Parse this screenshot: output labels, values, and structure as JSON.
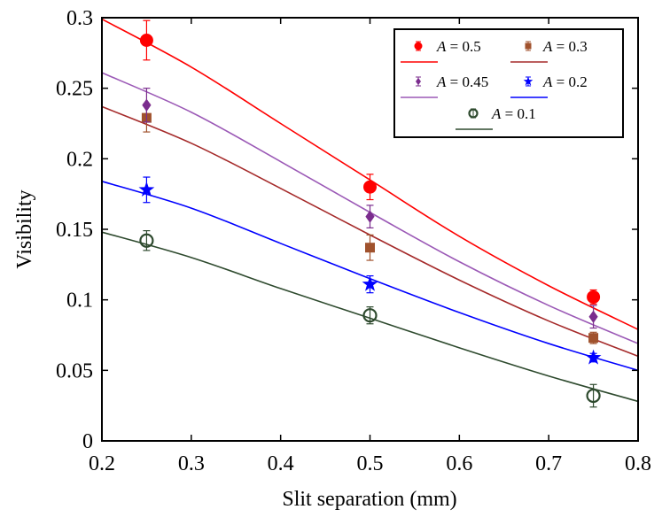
{
  "chart_data": {
    "type": "scatter",
    "title": "",
    "xlabel": "Slit separation (mm)",
    "ylabel": "Visibility",
    "xlim": [
      0.2,
      0.8
    ],
    "ylim": [
      0,
      0.3
    ],
    "xticks": [
      0.2,
      0.3,
      0.4,
      0.5,
      0.6,
      0.7,
      0.8
    ],
    "yticks": [
      0,
      0.05,
      0.1,
      0.15,
      0.2,
      0.25,
      0.3
    ],
    "xtick_labels": [
      "0.2",
      "0.3",
      "0.4",
      "0.5",
      "0.6",
      "0.7",
      "0.8"
    ],
    "ytick_labels": [
      "0",
      "0.05",
      "0.1",
      "0.15",
      "0.2",
      "0.25",
      "0.3"
    ],
    "legend_position": "top-right",
    "series": [
      {
        "name": "A = 0.5",
        "legend_var": "A",
        "legend_value": "= 0.5",
        "color": "#ff0000",
        "marker": "circle",
        "x": [
          0.25,
          0.5,
          0.75
        ],
        "y": [
          0.284,
          0.18,
          0.102
        ],
        "err": [
          0.014,
          0.009,
          0.005
        ],
        "fit_x": [
          0.2,
          0.3,
          0.4,
          0.5,
          0.6,
          0.7,
          0.8
        ],
        "fit_y": [
          0.299,
          0.265,
          0.225,
          0.185,
          0.145,
          0.11,
          0.079
        ]
      },
      {
        "name": "A = 0.3",
        "legend_var": "A",
        "legend_value": "= 0.3",
        "color": "#a0522d",
        "fit_color": "#a52a2a",
        "marker": "square",
        "x": [
          0.25,
          0.5,
          0.75
        ],
        "y": [
          0.229,
          0.137,
          0.073
        ],
        "err": [
          0.01,
          0.009,
          0.004
        ],
        "fit_x": [
          0.2,
          0.3,
          0.4,
          0.5,
          0.6,
          0.7,
          0.8
        ],
        "fit_y": [
          0.237,
          0.211,
          0.179,
          0.146,
          0.114,
          0.085,
          0.06
        ]
      },
      {
        "name": "A = 0.45",
        "legend_var": "A",
        "legend_value": "= 0.45",
        "color": "#7b2d8e",
        "fit_color": "#9b59b6",
        "marker": "diamond",
        "x": [
          0.25,
          0.5,
          0.75
        ],
        "y": [
          0.238,
          0.159,
          0.088
        ],
        "err": [
          0.012,
          0.008,
          0.008
        ],
        "fit_x": [
          0.2,
          0.3,
          0.4,
          0.5,
          0.6,
          0.7,
          0.8
        ],
        "fit_y": [
          0.261,
          0.233,
          0.198,
          0.162,
          0.127,
          0.096,
          0.069
        ]
      },
      {
        "name": "A = 0.2",
        "legend_var": "A",
        "legend_value": "= 0.2",
        "color": "#0000ff",
        "marker": "star",
        "x": [
          0.25,
          0.5,
          0.75
        ],
        "y": [
          0.178,
          0.111,
          0.059
        ],
        "err": [
          0.009,
          0.006,
          0.003
        ],
        "fit_x": [
          0.2,
          0.3,
          0.4,
          0.5,
          0.6,
          0.7,
          0.8
        ],
        "fit_y": [
          0.184,
          0.165,
          0.14,
          0.115,
          0.091,
          0.069,
          0.05
        ]
      },
      {
        "name": "A = 0.1",
        "legend_var": "A",
        "legend_value": "= 0.1",
        "color": "#2e4a2e",
        "marker": "open-circle",
        "x": [
          0.25,
          0.5,
          0.75
        ],
        "y": [
          0.142,
          0.089,
          0.032
        ],
        "err": [
          0.007,
          0.006,
          0.008
        ],
        "fit_x": [
          0.2,
          0.3,
          0.4,
          0.5,
          0.6,
          0.7,
          0.8
        ],
        "fit_y": [
          0.148,
          0.13,
          0.108,
          0.087,
          0.066,
          0.046,
          0.028
        ]
      }
    ]
  }
}
